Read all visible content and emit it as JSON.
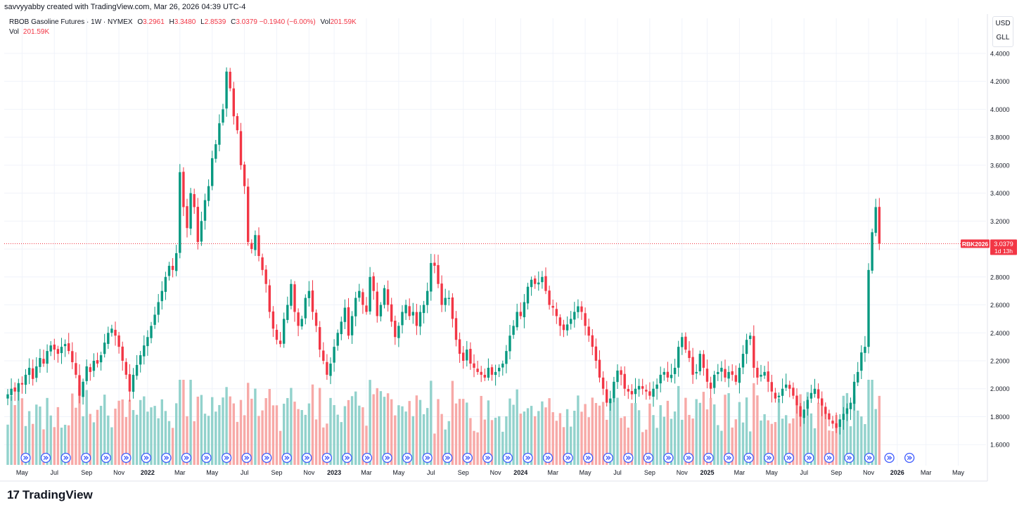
{
  "header": {
    "attribution": "savvyyabby created with TradingView.com, Mar 26, 2026 04:39 UTC-4"
  },
  "legend": {
    "symbol": "RBOB Gasoline Futures · 1W · NYMEX",
    "open_label": "O",
    "open": "3.2961",
    "high_label": "H",
    "high": "3.3480",
    "low_label": "L",
    "low": "2.8539",
    "close_label": "C",
    "close": "3.0379",
    "change": "−0.1940 (−6.00%)",
    "vol_label": "Vol",
    "vol": "201.59K"
  },
  "volume_legend": {
    "label": "Vol",
    "value": "201.59K"
  },
  "units": {
    "currency": "USD",
    "unit": "GLL"
  },
  "price_tag": {
    "ticker": "RBK2026",
    "price": "3.0379",
    "countdown": "1d 13h"
  },
  "footer": {
    "brand": "TradingView",
    "logo_mark": "17"
  },
  "colors": {
    "up": "#089981",
    "down": "#f23645",
    "up_vol": "#92d2cc",
    "down_vol": "#f7a9a7",
    "event": "#3d5afe"
  },
  "chart_data": {
    "type": "candlestick",
    "symbol": "RBOB Gasoline Futures",
    "interval": "1W",
    "ylim": [
      1.45,
      4.45
    ],
    "y_ticks": [
      "4.4000",
      "4.2000",
      "4.0000",
      "3.8000",
      "3.6000",
      "3.4000",
      "3.2000",
      "3.0000",
      "2.8000",
      "2.6000",
      "2.4000",
      "2.2000",
      "2.0000",
      "1.8000",
      "1.6000"
    ],
    "x_ticks": [
      {
        "label": "May",
        "week": 4
      },
      {
        "label": "Jul",
        "week": 13
      },
      {
        "label": "Sep",
        "week": 22
      },
      {
        "label": "Nov",
        "week": 31
      },
      {
        "label": "2022",
        "week": 39,
        "bold": true
      },
      {
        "label": "Mar",
        "week": 48
      },
      {
        "label": "May",
        "week": 57
      },
      {
        "label": "Jul",
        "week": 66
      },
      {
        "label": "Sep",
        "week": 75
      },
      {
        "label": "Nov",
        "week": 84
      },
      {
        "label": "2023",
        "week": 91,
        "bold": true
      },
      {
        "label": "Mar",
        "week": 100
      },
      {
        "label": "May",
        "week": 109
      },
      {
        "label": "Jul",
        "week": 118
      },
      {
        "label": "Sep",
        "week": 127
      },
      {
        "label": "Nov",
        "week": 136
      },
      {
        "label": "2024",
        "week": 143,
        "bold": true
      },
      {
        "label": "Mar",
        "week": 152
      },
      {
        "label": "May",
        "week": 161
      },
      {
        "label": "Jul",
        "week": 170
      },
      {
        "label": "Sep",
        "week": 179
      },
      {
        "label": "Nov",
        "week": 188
      },
      {
        "label": "2025",
        "week": 195,
        "bold": true
      },
      {
        "label": "Mar",
        "week": 204
      },
      {
        "label": "May",
        "week": 213
      },
      {
        "label": "Jul",
        "week": 222
      },
      {
        "label": "Sep",
        "week": 231
      },
      {
        "label": "Nov",
        "week": 240
      },
      {
        "label": "2026",
        "week": 248,
        "bold": true
      },
      {
        "label": "Mar",
        "week": 256
      },
      {
        "label": "May",
        "week": 265
      }
    ],
    "closes": [
      1.96,
      2.0,
      1.98,
      2.04,
      2.03,
      2.1,
      2.15,
      2.07,
      2.16,
      2.22,
      2.18,
      2.27,
      2.31,
      2.28,
      2.25,
      2.3,
      2.32,
      2.27,
      2.19,
      2.1,
      1.95,
      2.05,
      2.16,
      2.12,
      2.2,
      2.18,
      2.24,
      2.33,
      2.4,
      2.43,
      2.38,
      2.3,
      2.2,
      2.1,
      1.98,
      2.1,
      2.17,
      2.24,
      2.31,
      2.37,
      2.45,
      2.53,
      2.62,
      2.7,
      2.8,
      2.88,
      2.85,
      2.97,
      3.55,
      3.3,
      3.15,
      3.4,
      3.3,
      3.05,
      3.2,
      3.35,
      3.45,
      3.65,
      3.75,
      3.9,
      4.0,
      4.27,
      4.15,
      3.95,
      3.85,
      3.6,
      3.45,
      3.05,
      3.0,
      3.1,
      2.95,
      2.85,
      2.75,
      2.55,
      2.43,
      2.35,
      2.32,
      2.5,
      2.6,
      2.75,
      2.55,
      2.45,
      2.5,
      2.65,
      2.7,
      2.55,
      2.45,
      2.28,
      2.2,
      2.1,
      2.18,
      2.3,
      2.4,
      2.48,
      2.58,
      2.38,
      2.52,
      2.65,
      2.7,
      2.6,
      2.55,
      2.8,
      2.7,
      2.52,
      2.6,
      2.72,
      2.6,
      2.48,
      2.37,
      2.45,
      2.55,
      2.6,
      2.52,
      2.55,
      2.45,
      2.55,
      2.6,
      2.7,
      2.9,
      2.88,
      2.75,
      2.6,
      2.65,
      2.65,
      2.5,
      2.35,
      2.25,
      2.2,
      2.28,
      2.18,
      2.15,
      2.12,
      2.1,
      2.08,
      2.15,
      2.1,
      2.12,
      2.15,
      2.18,
      2.27,
      2.38,
      2.45,
      2.55,
      2.52,
      2.62,
      2.73,
      2.78,
      2.75,
      2.76,
      2.8,
      2.7,
      2.6,
      2.58,
      2.52,
      2.45,
      2.42,
      2.46,
      2.5,
      2.55,
      2.59,
      2.55,
      2.45,
      2.38,
      2.3,
      2.2,
      2.08,
      2.0,
      1.9,
      1.93,
      2.05,
      2.13,
      2.1,
      2.0,
      1.98,
      1.96,
      2.0,
      2.02,
      2.0,
      1.98,
      1.95,
      2.0,
      2.03,
      2.1,
      2.12,
      2.08,
      2.1,
      2.15,
      2.3,
      2.37,
      2.28,
      2.22,
      2.1,
      2.12,
      2.25,
      2.15,
      2.05,
      2.0,
      2.1,
      2.12,
      2.15,
      2.08,
      2.12,
      2.1,
      2.05,
      2.15,
      2.25,
      2.35,
      2.38,
      2.15,
      2.08,
      2.1,
      2.12,
      2.05,
      1.98,
      1.93,
      1.95,
      2.0,
      2.03,
      2.0,
      1.95,
      1.88,
      1.8,
      1.85,
      1.92,
      1.97,
      2.0,
      1.93,
      1.88,
      1.82,
      1.78,
      1.75,
      1.72,
      1.78,
      1.82,
      1.86,
      1.9,
      2.05,
      2.12,
      2.26,
      2.3,
      2.85,
      3.12,
      3.3,
      3.04
    ]
  }
}
